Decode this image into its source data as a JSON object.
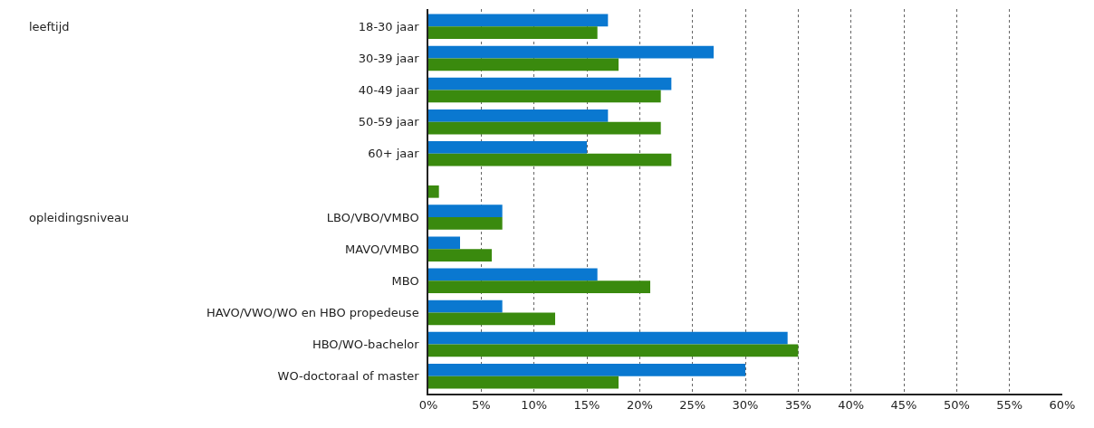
{
  "chart_data": {
    "type": "bar",
    "orientation": "horizontal",
    "categories": [
      "18-30 jaar",
      "30-39 jaar",
      "40-49 jaar",
      "50-59 jaar",
      "60+ jaar",
      null,
      "LBO/VBO/VMBO",
      "MAVO/VMBO",
      "MBO",
      "HAVO/VWO/WO en HBO propedeuse",
      "HBO/WO-bachelor",
      "WO-doctoraal of master"
    ],
    "series": [
      {
        "color": "#0a78d0",
        "values": [
          17,
          27,
          23,
          17,
          15,
          null,
          7,
          3,
          16,
          7,
          34,
          30
        ]
      },
      {
        "color": "#3a8a0e",
        "values": [
          16,
          18,
          22,
          22,
          23,
          1,
          7,
          6,
          21,
          12,
          35,
          18
        ]
      }
    ],
    "xlim": [
      0,
      60
    ],
    "xticks": [
      {
        "value": 0,
        "label": "0%"
      },
      {
        "value": 5,
        "label": "5%"
      },
      {
        "value": 10,
        "label": "10%"
      },
      {
        "value": 15,
        "label": "15%"
      },
      {
        "value": 20,
        "label": "20%"
      },
      {
        "value": 25,
        "label": "25%"
      },
      {
        "value": 30,
        "label": "30%"
      },
      {
        "value": 35,
        "label": "35%"
      },
      {
        "value": 40,
        "label": "40%"
      },
      {
        "value": 45,
        "label": "45%"
      },
      {
        "value": 50,
        "label": "50%"
      },
      {
        "value": 55,
        "label": "55%"
      },
      {
        "value": 60,
        "label": "60%"
      }
    ],
    "annotations": [
      "leeftijd",
      "opleidingsniveau"
    ],
    "grid": "x"
  }
}
